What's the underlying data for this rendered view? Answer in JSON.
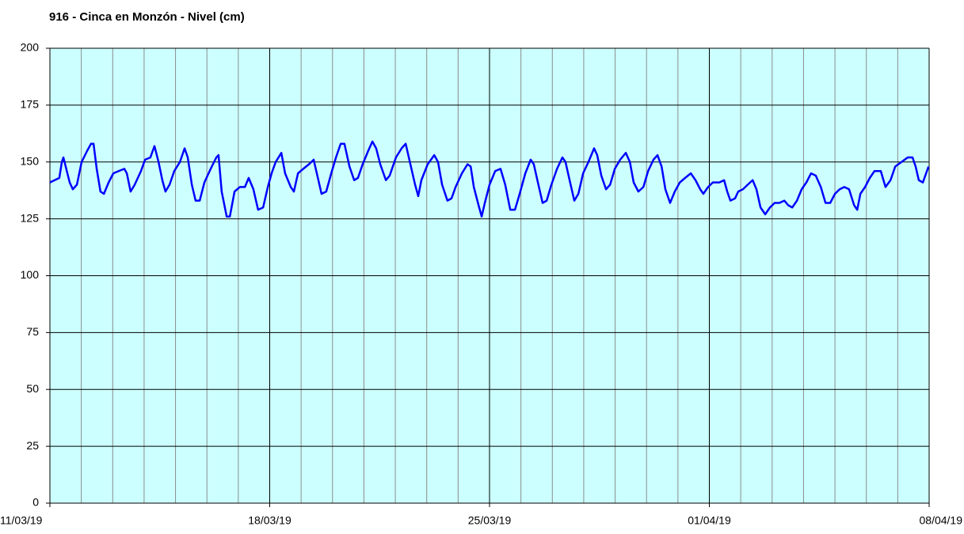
{
  "chart_data": {
    "type": "line",
    "title": "916 - Cinca en Monzón - Nivel (cm)",
    "xlim": [
      0,
      28
    ],
    "xticks": [
      {
        "value": 0,
        "label": "11/03/19"
      },
      {
        "value": 7,
        "label": "18/03/19"
      },
      {
        "value": 14,
        "label": "25/03/19"
      },
      {
        "value": 21,
        "label": "01/04/19"
      },
      {
        "value": 28,
        "label": "08/04/19"
      }
    ],
    "x_minor_ticks": [
      0,
      1,
      2,
      3,
      4,
      5,
      6,
      7,
      8,
      9,
      10,
      11,
      12,
      13,
      14,
      15,
      16,
      17,
      18,
      19,
      20,
      21,
      22,
      23,
      24,
      25,
      26,
      27,
      28
    ],
    "ylim": [
      0,
      200
    ],
    "yticks": [
      0,
      25,
      50,
      75,
      100,
      125,
      150,
      175,
      200
    ],
    "grid": true,
    "background": "#ccffff",
    "minor_grid_color": "#8c8c8c",
    "major_grid_color": "#000000",
    "series": [
      {
        "color": "#0000ff",
        "x": [
          0,
          0.3,
          0.38,
          0.43,
          0.63,
          0.73,
          0.86,
          1.01,
          1.19,
          1.31,
          1.39,
          1.49,
          1.61,
          1.72,
          1.87,
          2.02,
          2.19,
          2.37,
          2.45,
          2.57,
          2.7,
          2.9,
          3.03,
          3.2,
          3.33,
          3.46,
          3.58,
          3.68,
          3.81,
          3.96,
          4.14,
          4.29,
          4.39,
          4.52,
          4.64,
          4.77,
          4.92,
          5.12,
          5.3,
          5.37,
          5.47,
          5.63,
          5.73,
          5.88,
          6.05,
          6.21,
          6.33,
          6.48,
          6.63,
          6.79,
          6.94,
          7.06,
          7.19,
          7.37,
          7.49,
          7.67,
          7.77,
          7.9,
          8.07,
          8.25,
          8.4,
          8.5,
          8.65,
          8.8,
          8.96,
          9.11,
          9.26,
          9.38,
          9.54,
          9.69,
          9.81,
          9.96,
          10.14,
          10.27,
          10.39,
          10.52,
          10.7,
          10.82,
          11.02,
          11.2,
          11.33,
          11.48,
          11.63,
          11.73,
          11.83,
          12.03,
          12.24,
          12.36,
          12.49,
          12.66,
          12.79,
          12.92,
          13.12,
          13.3,
          13.4,
          13.5,
          13.65,
          13.75,
          13.85,
          14.0,
          14.18,
          14.35,
          14.5,
          14.66,
          14.81,
          14.96,
          15.14,
          15.31,
          15.41,
          15.54,
          15.69,
          15.82,
          15.97,
          16.15,
          16.32,
          16.42,
          16.55,
          16.7,
          16.83,
          16.98,
          17.15,
          17.33,
          17.43,
          17.56,
          17.71,
          17.84,
          17.99,
          18.16,
          18.34,
          18.47,
          18.59,
          18.74,
          18.9,
          19.05,
          19.22,
          19.35,
          19.48,
          19.6,
          19.75,
          19.9,
          20.06,
          20.23,
          20.41,
          20.56,
          20.71,
          20.81,
          20.96,
          21.11,
          21.32,
          21.47,
          21.57,
          21.67,
          21.82,
          21.92,
          22.07,
          22.22,
          22.38,
          22.5,
          22.63,
          22.78,
          22.93,
          23.08,
          23.23,
          23.39,
          23.51,
          23.64,
          23.79,
          23.94,
          24.09,
          24.24,
          24.39,
          24.55,
          24.7,
          24.85,
          25.0,
          25.15,
          25.3,
          25.45,
          25.61,
          25.71,
          25.81,
          25.96,
          26.11,
          26.26,
          26.46,
          26.61,
          26.77,
          26.92,
          27.12,
          27.32,
          27.47,
          27.57,
          27.67,
          27.8,
          27.98
        ],
        "values": [
          141,
          143,
          150,
          152,
          141,
          138,
          140,
          150,
          155,
          158,
          158,
          147,
          137,
          136,
          141,
          145,
          146,
          147,
          145,
          137,
          140,
          146,
          151,
          152,
          157,
          150,
          142,
          137,
          140,
          146,
          150,
          156,
          152,
          140,
          133,
          133,
          141,
          147,
          152,
          153,
          137,
          126,
          126,
          137,
          139,
          139,
          143,
          138,
          129,
          130,
          139,
          145,
          150,
          154,
          145,
          139,
          137,
          145,
          147,
          149,
          151,
          145,
          136,
          137,
          145,
          152,
          158,
          158,
          148,
          142,
          143,
          149,
          155,
          159,
          156,
          149,
          142,
          144,
          152,
          156,
          158,
          149,
          140,
          135,
          142,
          149,
          153,
          150,
          140,
          133,
          134,
          139,
          145,
          149,
          148,
          139,
          131,
          126,
          132,
          140,
          146,
          147,
          140,
          129,
          129,
          136,
          145,
          151,
          149,
          141,
          132,
          133,
          140,
          147,
          152,
          150,
          142,
          133,
          136,
          145,
          150,
          156,
          153,
          144,
          138,
          140,
          147,
          151,
          154,
          150,
          141,
          137,
          139,
          146,
          151,
          153,
          148,
          138,
          132,
          137,
          141,
          143,
          145,
          142,
          138,
          136,
          139,
          141,
          141,
          142,
          137,
          133,
          134,
          137,
          138,
          140,
          142,
          138,
          130,
          127,
          130,
          132,
          132,
          133,
          131,
          130,
          133,
          138,
          141,
          145,
          144,
          139,
          132,
          132,
          136,
          138,
          139,
          138,
          131,
          129,
          136,
          139,
          143,
          146,
          146,
          139,
          142,
          148,
          150,
          152,
          152,
          148,
          142,
          141,
          148
        ]
      }
    ]
  }
}
